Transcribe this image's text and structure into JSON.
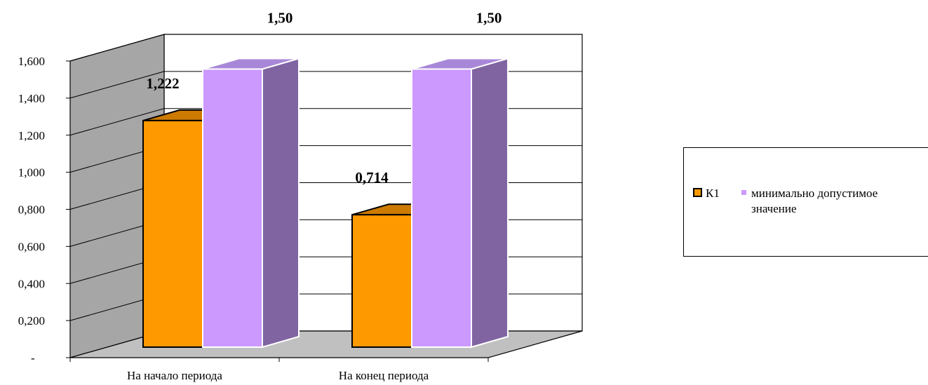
{
  "chart_data": {
    "type": "bar",
    "style": "3d-clustered-column",
    "categories": [
      "На начало периода",
      "На конец периода"
    ],
    "series": [
      {
        "name": "К1",
        "values": [
          1.222,
          0.714
        ],
        "color": "#ff9900",
        "side_color": "#b86e00",
        "top_color": "#cc7a00",
        "labels": [
          "1,222",
          "0,714"
        ]
      },
      {
        "name": "минимально допустимое значение",
        "values": [
          1.5,
          1.5
        ],
        "color": "#cc99ff",
        "side_color": "#8064a2",
        "top_color": "#a887d8",
        "labels": [
          "1,50",
          "1,50"
        ]
      }
    ],
    "ylim": [
      0,
      1.6
    ],
    "yticks": [
      0,
      0.2,
      0.4,
      0.6,
      0.8,
      1.0,
      1.2,
      1.4,
      1.6
    ],
    "ytick_labels": [
      "-",
      "0,200",
      "0,400",
      "0,600",
      "0,800",
      "1,000",
      "1,200",
      "1,400",
      "1,600"
    ],
    "grid": true,
    "legend_position": "right",
    "colors": {
      "back_wall": "#ffffff",
      "side_wall": "#a6a6a6",
      "floor": "#c0c0c0"
    }
  },
  "legend": {
    "k1_label": "К1",
    "min_label_line1": "минимально допустимое",
    "min_label_line2": "значение"
  }
}
